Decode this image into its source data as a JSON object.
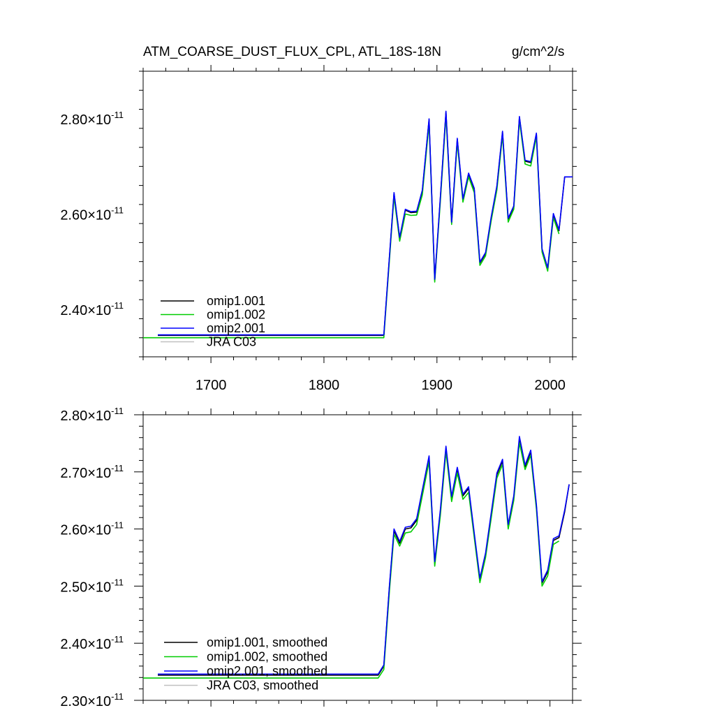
{
  "title_left": "ATM_COARSE_DUST_FLUX_CPL, ATL_18S-18N",
  "title_right": "g/cm^2/s",
  "chart_data": [
    {
      "type": "line",
      "title": "ATM_COARSE_DUST_FLUX_CPL, ATL_18S-18N",
      "units": "g/cm^2/s",
      "xlim": [
        1640,
        2020
      ],
      "ylim": [
        2.3e-11,
        2.9e-11
      ],
      "x_ticks": [
        1700,
        1800,
        1900,
        2000
      ],
      "x_tick_labels": [
        "1700",
        "1800",
        "1900",
        "2000"
      ],
      "y_ticks": [
        2.4e-11,
        2.6e-11,
        2.8e-11
      ],
      "y_tick_labels": [
        {
          "mantissa": "2.40",
          "times": "×",
          "base": "10",
          "exponent": "-11"
        },
        {
          "mantissa": "2.60",
          "times": "×",
          "base": "10",
          "exponent": "-11"
        },
        {
          "mantissa": "2.80",
          "times": "×",
          "base": "10",
          "exponent": "-11"
        }
      ],
      "legend_position": "bottom-left",
      "legend": [
        "omip1.001",
        "omip1.002",
        "omip2.001",
        "JRA C03"
      ],
      "series": [
        {
          "name": "omip1.001",
          "color": "#000000",
          "x": [
            1653,
            1853,
            1862,
            1867,
            1872,
            1877,
            1882,
            1887,
            1893,
            1898,
            1903,
            1908,
            1913,
            1918,
            1923,
            1928,
            1933,
            1938,
            1943,
            1948,
            1953,
            1958,
            1963,
            1968,
            1973,
            1978,
            1983,
            1988,
            1993,
            1998,
            2003,
            2008,
            2013,
            2018
          ],
          "y": [
            2.345,
            2.345,
            2.643,
            2.549,
            2.608,
            2.603,
            2.604,
            2.648,
            2.798,
            2.461,
            2.632,
            2.814,
            2.582,
            2.757,
            2.63,
            2.684,
            2.652,
            2.497,
            2.517,
            2.592,
            2.657,
            2.772,
            2.589,
            2.615,
            2.803,
            2.711,
            2.708,
            2.768,
            2.525,
            2.485,
            2.599,
            2.565,
            2.678,
            2.678
          ],
          "y_scale": "x1e-11"
        },
        {
          "name": "omip1.002",
          "color": "#00cc00",
          "x": [
            1640,
            1853,
            1862,
            1867,
            1872,
            1877,
            1882,
            1887,
            1893,
            1898,
            1903,
            1908,
            1913,
            1918,
            1923,
            1928,
            1933,
            1938,
            1943,
            1948,
            1953,
            1958,
            1963,
            1968,
            1973,
            1978,
            1983,
            1988,
            1993,
            1998,
            2003,
            2008
          ],
          "y": [
            2.34,
            2.34,
            2.636,
            2.543,
            2.6,
            2.597,
            2.598,
            2.64,
            2.79,
            2.457,
            2.625,
            2.806,
            2.578,
            2.75,
            2.625,
            2.678,
            2.645,
            2.492,
            2.512,
            2.586,
            2.65,
            2.765,
            2.583,
            2.61,
            2.797,
            2.705,
            2.701,
            2.762,
            2.52,
            2.48,
            2.592,
            2.558
          ],
          "y_scale": "x1e-11"
        },
        {
          "name": "omip2.001",
          "color": "#0000ff",
          "x": [
            1653,
            1853,
            1862,
            1867,
            1872,
            1877,
            1882,
            1887,
            1893,
            1898,
            1903,
            1908,
            1913,
            1918,
            1923,
            1928,
            1933,
            1938,
            1943,
            1948,
            1953,
            1958,
            1963,
            1968,
            1973,
            1978,
            1983,
            1988,
            1993,
            1998,
            2003,
            2008,
            2013,
            2020
          ],
          "y": [
            2.346,
            2.346,
            2.645,
            2.551,
            2.61,
            2.605,
            2.606,
            2.65,
            2.8,
            2.463,
            2.634,
            2.816,
            2.583,
            2.759,
            2.632,
            2.686,
            2.654,
            2.499,
            2.519,
            2.594,
            2.659,
            2.774,
            2.591,
            2.617,
            2.805,
            2.713,
            2.71,
            2.77,
            2.527,
            2.487,
            2.601,
            2.567,
            2.678,
            2.678
          ],
          "y_scale": "x1e-11"
        },
        {
          "name": "JRA C03",
          "color": "#c0c0c0",
          "x": [],
          "y": []
        }
      ]
    },
    {
      "type": "line",
      "xlim": [
        1640,
        2020
      ],
      "ylim": [
        2.3e-11,
        2.8e-11
      ],
      "x_ticks": [
        1700,
        1800,
        1900,
        2000
      ],
      "y_ticks": [
        2.3e-11,
        2.4e-11,
        2.5e-11,
        2.6e-11,
        2.7e-11,
        2.8e-11
      ],
      "y_tick_labels": [
        {
          "mantissa": "2.30",
          "times": "×",
          "base": "10",
          "exponent": "-11"
        },
        {
          "mantissa": "2.40",
          "times": "×",
          "base": "10",
          "exponent": "-11"
        },
        {
          "mantissa": "2.50",
          "times": "×",
          "base": "10",
          "exponent": "-11"
        },
        {
          "mantissa": "2.60",
          "times": "×",
          "base": "10",
          "exponent": "-11"
        },
        {
          "mantissa": "2.70",
          "times": "×",
          "base": "10",
          "exponent": "-11"
        },
        {
          "mantissa": "2.80",
          "times": "×",
          "base": "10",
          "exponent": "-11"
        }
      ],
      "legend_position": "bottom-left",
      "legend": [
        "omip1.001, smoothed",
        "omip1.002, smoothed",
        "omip2.001, smoothed",
        "JRA C03, smoothed"
      ],
      "series": [
        {
          "name": "omip1.001, smoothed",
          "color": "#000000",
          "x": [
            1653,
            1848,
            1853,
            1858,
            1862,
            1867,
            1872,
            1877,
            1882,
            1887,
            1893,
            1898,
            1903,
            1908,
            1913,
            1918,
            1923,
            1928,
            1933,
            1938,
            1943,
            1948,
            1953,
            1958,
            1963,
            1968,
            1973,
            1978,
            1983,
            1988,
            1993,
            1998,
            2003,
            2008,
            2013,
            2017
          ],
          "y": [
            2.344,
            2.344,
            2.36,
            2.5,
            2.597,
            2.575,
            2.6,
            2.602,
            2.615,
            2.665,
            2.725,
            2.54,
            2.63,
            2.741,
            2.653,
            2.705,
            2.658,
            2.671,
            2.59,
            2.511,
            2.555,
            2.625,
            2.695,
            2.719,
            2.605,
            2.655,
            2.758,
            2.709,
            2.735,
            2.64,
            2.505,
            2.525,
            2.58,
            2.585,
            2.63,
            2.678
          ],
          "y_scale": "x1e-11"
        },
        {
          "name": "omip1.002, smoothed",
          "color": "#00cc00",
          "x": [
            1640,
            1848,
            1853,
            1858,
            1862,
            1867,
            1872,
            1877,
            1882,
            1887,
            1893,
            1898,
            1903,
            1908,
            1913,
            1918,
            1923,
            1928,
            1933,
            1938,
            1943,
            1948,
            1953,
            1958,
            1963,
            1968,
            1973,
            1978,
            1983,
            1988,
            1993,
            1998,
            2003,
            2008
          ],
          "y": [
            2.339,
            2.339,
            2.354,
            2.492,
            2.591,
            2.57,
            2.593,
            2.595,
            2.608,
            2.658,
            2.718,
            2.535,
            2.623,
            2.735,
            2.648,
            2.698,
            2.652,
            2.664,
            2.585,
            2.506,
            2.55,
            2.619,
            2.689,
            2.713,
            2.6,
            2.65,
            2.751,
            2.704,
            2.729,
            2.635,
            2.5,
            2.518,
            2.573,
            2.579
          ],
          "y_scale": "x1e-11"
        },
        {
          "name": "omip2.001, smoothed",
          "color": "#0000ff",
          "x": [
            1653,
            1848,
            1853,
            1858,
            1862,
            1867,
            1872,
            1877,
            1882,
            1887,
            1893,
            1898,
            1903,
            1908,
            1913,
            1918,
            1923,
            1928,
            1933,
            1938,
            1943,
            1948,
            1953,
            1958,
            1963,
            1968,
            1973,
            1978,
            1983,
            1988,
            1993,
            1998,
            2003,
            2008,
            2013,
            2017
          ],
          "y": [
            2.346,
            2.346,
            2.362,
            2.502,
            2.6,
            2.578,
            2.603,
            2.605,
            2.618,
            2.668,
            2.728,
            2.543,
            2.633,
            2.745,
            2.657,
            2.708,
            2.661,
            2.674,
            2.593,
            2.514,
            2.558,
            2.628,
            2.698,
            2.722,
            2.608,
            2.658,
            2.762,
            2.712,
            2.738,
            2.643,
            2.508,
            2.528,
            2.583,
            2.588,
            2.633,
            2.678
          ],
          "y_scale": "x1e-11"
        },
        {
          "name": "JRA C03, smoothed",
          "color": "#c0c0c0",
          "x": [],
          "y": []
        }
      ]
    }
  ]
}
